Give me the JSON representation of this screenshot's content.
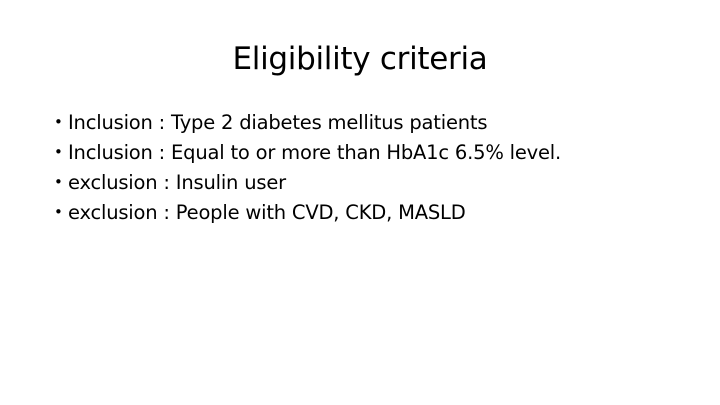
{
  "slide": {
    "title": "Eligibility criteria",
    "bullet_glyph": "•",
    "items": [
      {
        "text": "Inclusion : Type 2 diabetes mellitus patients"
      },
      {
        "text": "Inclusion : Equal to or more than HbA1c 6.5% level."
      },
      {
        "text": "exclusion : Insulin user"
      },
      {
        "text": "exclusion : People with CVD, CKD, MASLD"
      }
    ]
  }
}
